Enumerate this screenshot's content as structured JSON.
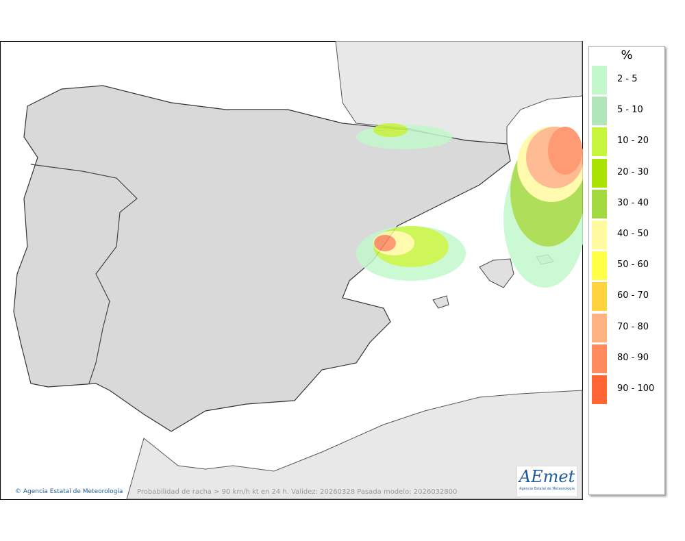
{
  "map": {
    "footer_credit": "© Agencia Estatal de Meteorología",
    "footer_caption": "Probabilidad de racha > 90 km/h kt en 24 h. Validez: 20260328 Pasada modelo: 2026032800",
    "logo": {
      "name": "AEmet",
      "subtitle": "Agencia Estatal de Meteorología"
    }
  },
  "legend": {
    "title": "%",
    "items": [
      {
        "label": "2 - 5",
        "color": "#c2f8cc"
      },
      {
        "label": "5 - 10",
        "color": "#b2e6ba"
      },
      {
        "label": "10 - 20",
        "color": "#c6f53c"
      },
      {
        "label": "20 - 30",
        "color": "#aae302"
      },
      {
        "label": "30 - 40",
        "color": "#a2d93e"
      },
      {
        "label": "40 - 50",
        "color": "#fffaa0"
      },
      {
        "label": "50 - 60",
        "color": "#ffff48"
      },
      {
        "label": "60 - 70",
        "color": "#ffd23e"
      },
      {
        "label": "70 - 80",
        "color": "#ffb182"
      },
      {
        "label": "80 - 90",
        "color": "#ff8a5c"
      },
      {
        "label": "90 - 100",
        "color": "#ff6533"
      }
    ]
  }
}
